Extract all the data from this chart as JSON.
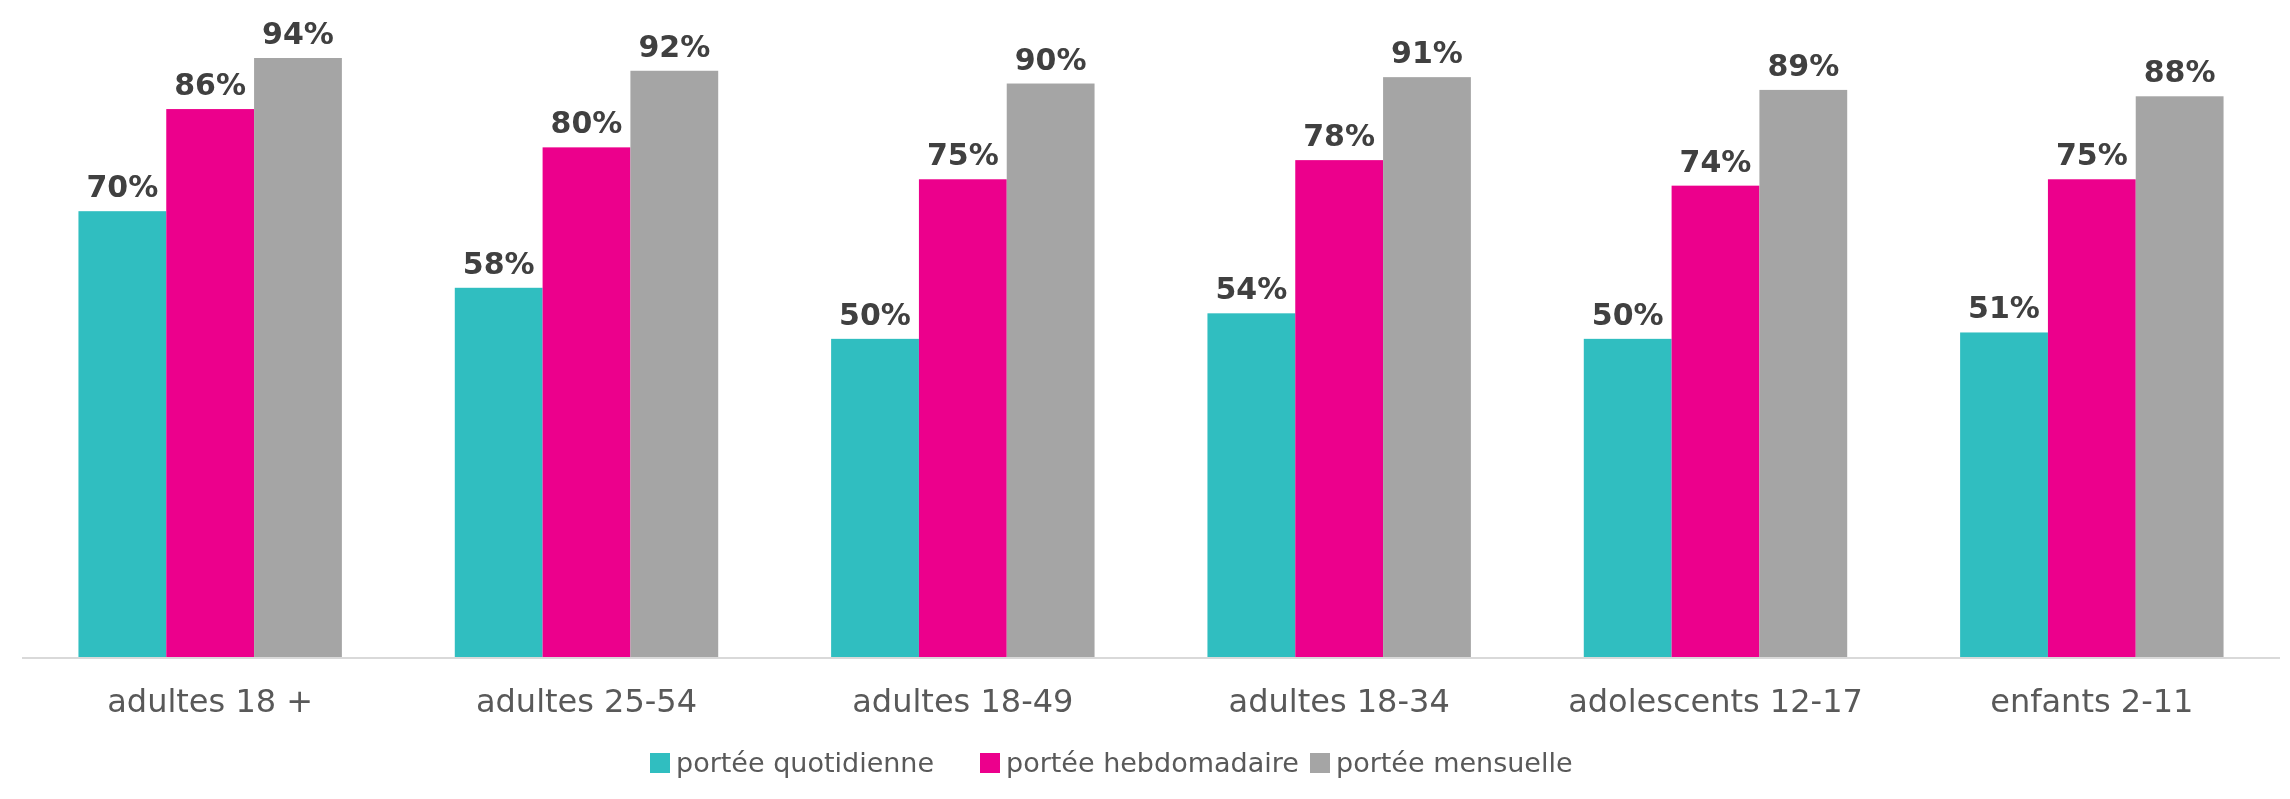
{
  "chart_data": {
    "type": "bar",
    "categories": [
      "adultes 18 +",
      "adultes 25-54",
      "adultes 18-49",
      "adultes 18-34",
      "adolescents 12-17",
      "enfants 2-11"
    ],
    "series": [
      {
        "name": "portée quotidienne",
        "color": "#30bec0",
        "values": [
          70,
          58,
          50,
          54,
          50,
          51
        ],
        "value_labels": [
          "70%",
          "58%",
          "50%",
          "54%",
          "50%",
          "51%"
        ]
      },
      {
        "name": "portée hebdomadaire",
        "color": "#ec008c",
        "values": [
          86,
          80,
          75,
          78,
          74,
          75
        ],
        "value_labels": [
          "86%",
          "80%",
          "75%",
          "78%",
          "74%",
          "75%"
        ]
      },
      {
        "name": "portée mensuelle",
        "color": "#a5a5a5",
        "values": [
          94,
          92,
          90,
          91,
          89,
          88
        ],
        "value_labels": [
          "94%",
          "92%",
          "90%",
          "91%",
          "89%",
          "88%"
        ]
      }
    ],
    "legend": "bottom",
    "tick_labels": "x"
  }
}
